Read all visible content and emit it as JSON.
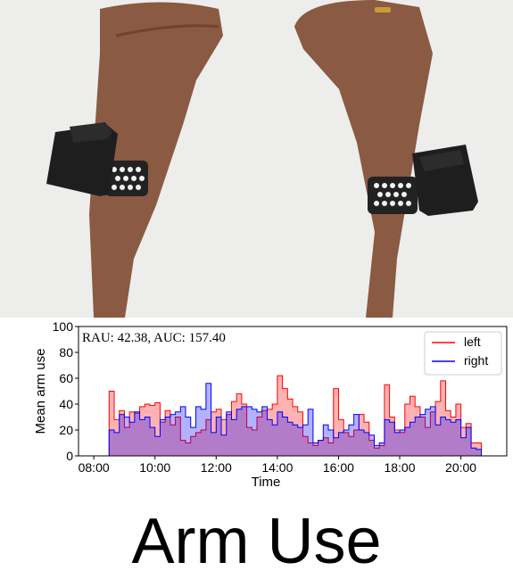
{
  "caption": "Arm Use",
  "colors": {
    "left": "#ff0000",
    "right": "#0000ff",
    "overlap": "#9b59b6"
  },
  "photo": {
    "icons": [
      "left-wrist-device-icon",
      "right-wrist-device-icon"
    ]
  },
  "chart_data": {
    "type": "area",
    "annotation": "RAU:  42.38,  AUC: 157.40",
    "xlabel": "Time",
    "ylabel": "Mean arm use",
    "ylim": [
      0,
      100
    ],
    "yticks": [
      0,
      20,
      40,
      60,
      80,
      100
    ],
    "xlim": [
      7.5,
      21.5
    ],
    "xticks": [
      {
        "value": 8,
        "label": "08:00"
      },
      {
        "value": 10,
        "label": "10:00"
      },
      {
        "value": 12,
        "label": "12:00"
      },
      {
        "value": 14,
        "label": "14:00"
      },
      {
        "value": 16,
        "label": "16:00"
      },
      {
        "value": 18,
        "label": "18:00"
      },
      {
        "value": 20,
        "label": "20:00"
      }
    ],
    "legend_position": "top-right",
    "x_start": 8.5,
    "bin_hours": 0.1667,
    "series": [
      {
        "name": "left",
        "color": "#ff0000",
        "values": [
          50,
          28,
          35,
          22,
          34,
          33,
          38,
          40,
          39,
          41,
          26,
          35,
          24,
          30,
          12,
          10,
          15,
          18,
          20,
          28,
          34,
          36,
          28,
          32,
          42,
          48,
          40,
          22,
          20,
          30,
          35,
          36,
          40,
          62,
          52,
          44,
          38,
          34,
          15,
          10,
          8,
          12,
          14,
          10,
          52,
          28,
          18,
          15,
          20,
          32,
          26,
          12,
          6,
          8,
          55,
          30,
          20,
          18,
          40,
          46,
          38,
          30,
          22,
          34,
          42,
          58,
          35,
          30,
          40,
          22,
          25,
          10,
          10
        ]
      },
      {
        "name": "right",
        "color": "#0000ff",
        "values": [
          20,
          18,
          32,
          30,
          26,
          34,
          28,
          30,
          22,
          15,
          28,
          30,
          32,
          34,
          38,
          30,
          22,
          38,
          36,
          56,
          18,
          30,
          16,
          34,
          28,
          36,
          38,
          38,
          36,
          34,
          38,
          28,
          24,
          34,
          30,
          26,
          24,
          22,
          24,
          36,
          10,
          12,
          24,
          20,
          14,
          18,
          20,
          24,
          32,
          20,
          18,
          16,
          8,
          10,
          28,
          26,
          18,
          20,
          22,
          26,
          30,
          32,
          36,
          38,
          24,
          30,
          28,
          26,
          28,
          14,
          22,
          6,
          5
        ]
      }
    ]
  }
}
